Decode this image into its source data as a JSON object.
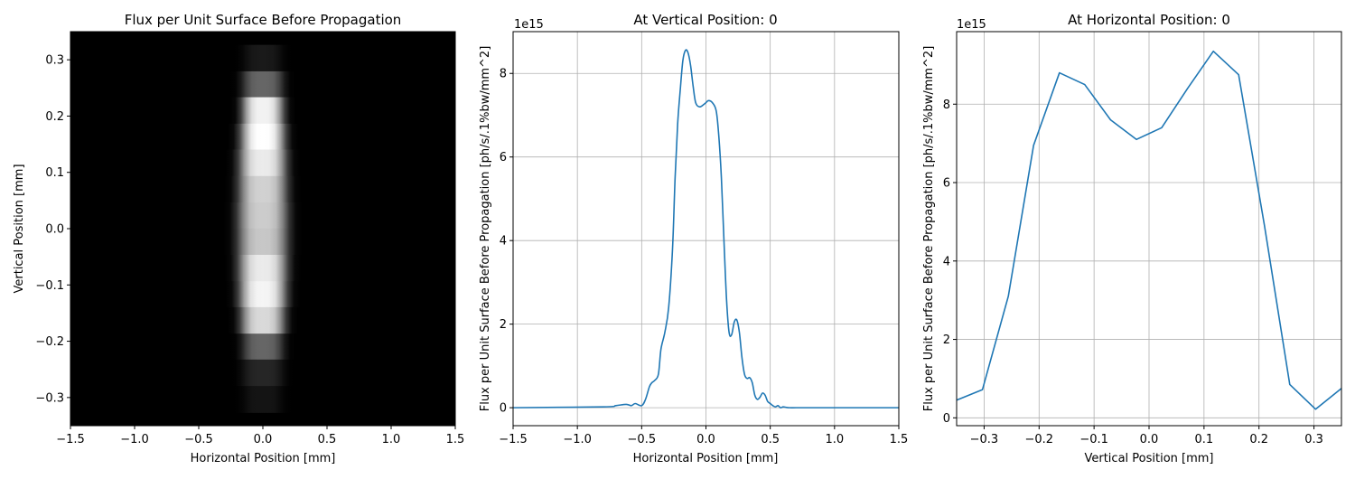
{
  "figure_type": "matplotlib three-panel figure",
  "colors": {
    "line": "#1f77b4",
    "grid": "#b0b0b0",
    "image_background": "#000000"
  },
  "chart_data": [
    {
      "type": "heatmap",
      "title": "Flux per Unit Surface Before Propagation",
      "xlabel": "Horizontal Position [mm]",
      "ylabel": "Vertical Position [mm]",
      "xlim": [
        -1.5,
        1.5
      ],
      "ylim": [
        -0.35,
        0.35
      ],
      "xticks": [
        -1.5,
        -1.0,
        -0.5,
        0.0,
        0.5,
        1.0,
        1.5
      ],
      "xtick_labels": [
        "−1.5",
        "−1.0",
        "−0.5",
        "0.0",
        "0.5",
        "1.0",
        "1.5"
      ],
      "yticks": [
        -0.3,
        -0.2,
        -0.1,
        0.0,
        0.1,
        0.2,
        0.3
      ],
      "ytick_labels": [
        "−0.3",
        "−0.2",
        "−0.1",
        "0.0",
        "0.1",
        "0.2",
        "0.3"
      ],
      "colormap": "gray",
      "grid": false,
      "rows_y": [
        0.303,
        0.256,
        0.21,
        0.163,
        0.117,
        0.07,
        0.023,
        -0.023,
        -0.07,
        -0.117,
        -0.163,
        -0.21,
        -0.256,
        -0.303
      ],
      "row_intensity": [
        0.1,
        0.4,
        0.95,
        1.0,
        0.92,
        0.82,
        0.8,
        0.78,
        0.92,
        0.96,
        0.85,
        0.4,
        0.15,
        0.08
      ],
      "row_halfwidth_mm": [
        0.28,
        0.3,
        0.3,
        0.32,
        0.34,
        0.35,
        0.36,
        0.36,
        0.35,
        0.34,
        0.32,
        0.3,
        0.3,
        0.28
      ],
      "center_mm": 0.0
    },
    {
      "type": "line",
      "title": "At Vertical Position: 0",
      "xlabel": "Horizontal Position [mm]",
      "ylabel": "Flux per Unit Surface Before Propagation [ph/s/.1%bw/mm^2]",
      "y_offset_label": "1e15",
      "xlim": [
        -1.5,
        1.5
      ],
      "ylim": [
        -0.43,
        9.0
      ],
      "xticks": [
        -1.5,
        -1.0,
        -0.5,
        0.0,
        0.5,
        1.0,
        1.5
      ],
      "xtick_labels": [
        "−1.5",
        "−1.0",
        "−0.5",
        "0.0",
        "0.5",
        "1.0",
        "1.5"
      ],
      "yticks": [
        0,
        2,
        4,
        6,
        8
      ],
      "ytick_labels": [
        "0",
        "2",
        "4",
        "6",
        "8"
      ],
      "grid": true,
      "x": [
        -1.5,
        -0.8,
        -0.7,
        -0.62,
        -0.58,
        -0.55,
        -0.5,
        -0.47,
        -0.44,
        -0.42,
        -0.4,
        -0.37,
        -0.35,
        -0.32,
        -0.29,
        -0.26,
        -0.24,
        -0.22,
        -0.2,
        -0.18,
        -0.16,
        -0.14,
        -0.12,
        -0.1,
        -0.08,
        -0.05,
        -0.02,
        0.0,
        0.02,
        0.05,
        0.08,
        0.1,
        0.12,
        0.14,
        0.16,
        0.18,
        0.2,
        0.22,
        0.24,
        0.26,
        0.28,
        0.3,
        0.32,
        0.34,
        0.36,
        0.38,
        0.4,
        0.42,
        0.44,
        0.46,
        0.48,
        0.5,
        0.52,
        0.54,
        0.56,
        0.58,
        0.6,
        0.62,
        0.65,
        0.7,
        0.8,
        1.5
      ],
      "y": [
        0.0,
        0.02,
        0.05,
        0.08,
        0.05,
        0.1,
        0.05,
        0.2,
        0.5,
        0.6,
        0.65,
        0.8,
        1.4,
        1.8,
        2.4,
        3.8,
        5.5,
        6.8,
        7.6,
        8.3,
        8.55,
        8.5,
        8.2,
        7.7,
        7.3,
        7.2,
        7.25,
        7.3,
        7.35,
        7.3,
        7.1,
        6.5,
        5.5,
        4.0,
        2.6,
        1.8,
        1.75,
        2.05,
        2.1,
        1.8,
        1.2,
        0.8,
        0.7,
        0.72,
        0.6,
        0.3,
        0.2,
        0.25,
        0.35,
        0.3,
        0.15,
        0.1,
        0.05,
        0.02,
        0.05,
        0.0,
        0.02,
        0.01,
        0.0,
        0.0,
        0.0,
        0.0
      ]
    },
    {
      "type": "line",
      "title": "At Horizontal Position: 0",
      "xlabel": "Vertical Position [mm]",
      "ylabel": "Flux per Unit Surface Before Propagation [ph/s/.1%bw/mm^2]",
      "y_offset_label": "1e15",
      "xlim": [
        -0.35,
        0.35
      ],
      "ylim": [
        -0.2,
        9.85
      ],
      "xticks": [
        -0.3,
        -0.2,
        -0.1,
        0.0,
        0.1,
        0.2,
        0.3
      ],
      "xtick_labels": [
        "−0.3",
        "−0.2",
        "−0.1",
        "0.0",
        "0.1",
        "0.2",
        "0.3"
      ],
      "yticks": [
        0,
        2,
        4,
        6,
        8
      ],
      "ytick_labels": [
        "0",
        "2",
        "4",
        "6",
        "8"
      ],
      "grid": true,
      "x": [
        -0.35,
        -0.303,
        -0.256,
        -0.21,
        -0.163,
        -0.117,
        -0.07,
        -0.023,
        0.023,
        0.07,
        0.117,
        0.163,
        0.21,
        0.256,
        0.303,
        0.35
      ],
      "y": [
        0.45,
        0.72,
        3.1,
        6.95,
        8.8,
        8.5,
        7.6,
        7.1,
        7.4,
        8.4,
        9.35,
        8.75,
        4.9,
        0.85,
        0.22,
        0.75
      ]
    }
  ]
}
